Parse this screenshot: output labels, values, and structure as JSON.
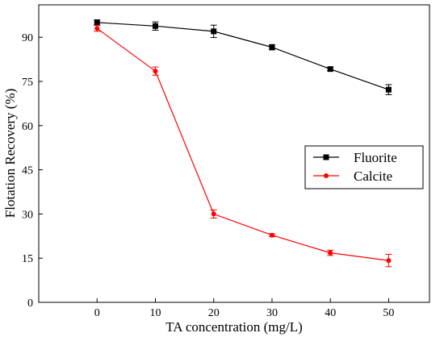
{
  "chart_data": {
    "type": "line",
    "title": "",
    "xlabel": "TA concentration (mg/L)",
    "ylabel": "Flotation Recovery (%)",
    "xlim": [
      -10,
      57
    ],
    "ylim": [
      0,
      101
    ],
    "x_ticks": [
      "0",
      "10",
      "20",
      "30",
      "40",
      "50"
    ],
    "y_ticks": [
      "0",
      "15",
      "30",
      "45",
      "60",
      "75",
      "90"
    ],
    "grid": false,
    "legend_position": "center-right",
    "x": [
      0,
      10,
      20,
      30,
      40,
      50
    ],
    "series": [
      {
        "name": "Fluorite",
        "color": "#000000",
        "marker": "square",
        "values": [
          95.0,
          93.8,
          92.0,
          86.6,
          79.2,
          72.2
        ],
        "errors": [
          0.9,
          1.4,
          2.1,
          0.9,
          0.6,
          1.7
        ]
      },
      {
        "name": "Calcite",
        "color": "#ff0000",
        "marker": "circle",
        "values": [
          93.0,
          78.5,
          30.0,
          22.8,
          16.8,
          14.2
        ],
        "errors": [
          1.0,
          1.4,
          1.4,
          0.5,
          0.9,
          2.1
        ]
      }
    ]
  }
}
